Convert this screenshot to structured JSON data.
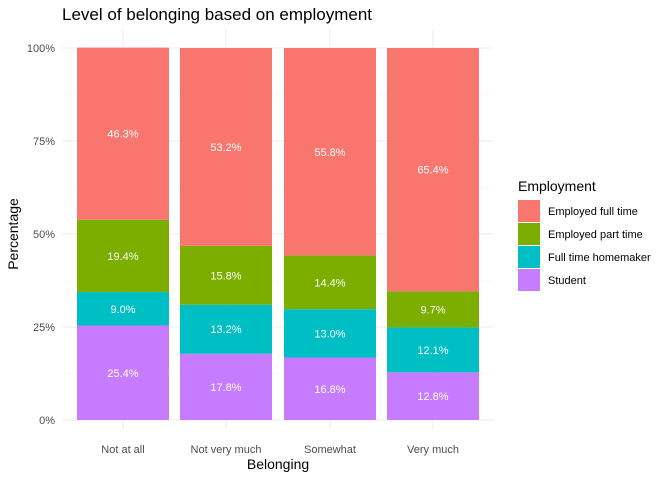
{
  "chart_data": {
    "type": "bar",
    "stacked": true,
    "title": "Level of belonging based on employment",
    "xlabel": "Belonging",
    "ylabel": "Percentage",
    "ylim": [
      0,
      1
    ],
    "y_ticks": [
      "0%",
      "25%",
      "50%",
      "75%",
      "100%"
    ],
    "categories": [
      "Not at all",
      "Not very much",
      "Somewhat",
      "Very much"
    ],
    "legend_title": "Employment",
    "legend_position": "right",
    "grid": true,
    "series": [
      {
        "name": "Employed full time",
        "color": "#F8766D",
        "values": [
          0.463,
          0.532,
          0.558,
          0.654
        ],
        "labels": [
          "46.3%",
          "53.2%",
          "55.8%",
          "65.4%"
        ]
      },
      {
        "name": "Employed part time",
        "color": "#7CAE00",
        "values": [
          0.194,
          0.158,
          0.144,
          0.097
        ],
        "labels": [
          "19.4%",
          "15.8%",
          "14.4%",
          "9.7%"
        ]
      },
      {
        "name": "Full time homemaker",
        "color": "#00BFC4",
        "values": [
          0.09,
          0.132,
          0.13,
          0.121
        ],
        "labels": [
          "9.0%",
          "13.2%",
          "13.0%",
          "12.1%"
        ]
      },
      {
        "name": "Student",
        "color": "#C77CFF",
        "values": [
          0.254,
          0.178,
          0.168,
          0.128
        ],
        "labels": [
          "25.4%",
          "17.8%",
          "16.8%",
          "12.8%"
        ]
      }
    ]
  }
}
